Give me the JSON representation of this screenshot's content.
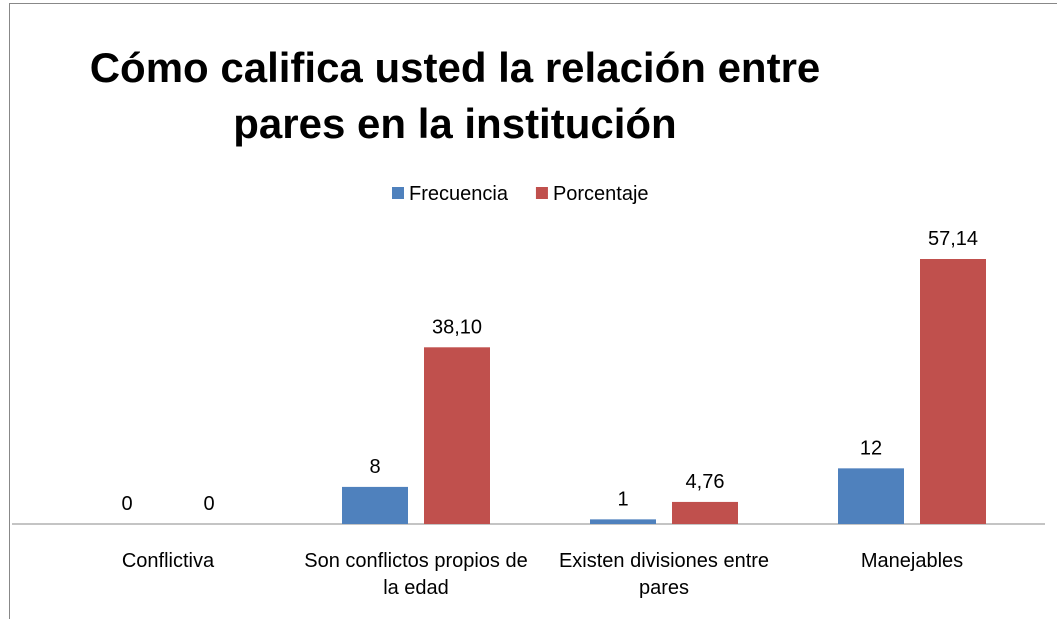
{
  "chart_data": {
    "type": "bar",
    "title": "Cómo califica  usted la relación entre pares en la institución",
    "categories": [
      "Conflictiva",
      "Son conflictos propios de la edad",
      "Existen divisiones entre pares",
      "Manejables"
    ],
    "series": [
      {
        "name": "Frecuencia",
        "color": "#4f81bd",
        "values": [
          0,
          8,
          1,
          12
        ]
      },
      {
        "name": "Porcentaje",
        "color": "#c0504d",
        "values": [
          0,
          38.1,
          4.76,
          57.14
        ],
        "value_labels": [
          "0",
          "38,10",
          "4,76",
          "57,14"
        ]
      }
    ],
    "legend": "top"
  }
}
